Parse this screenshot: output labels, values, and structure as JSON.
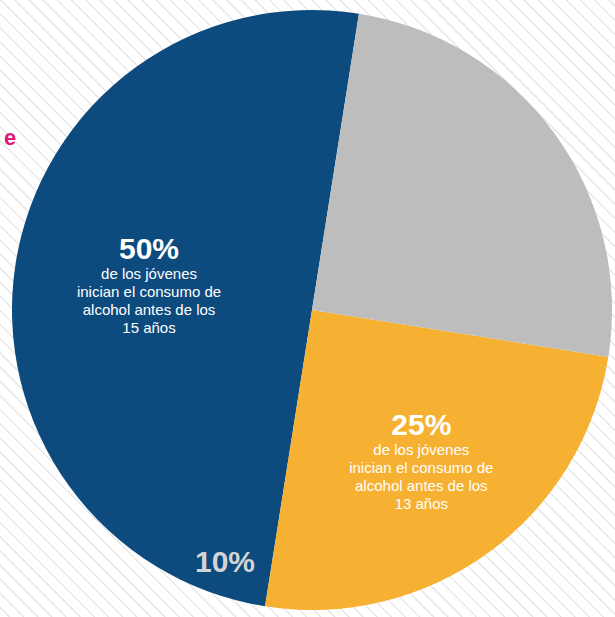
{
  "chart_data": {
    "type": "pie",
    "values": [
      50,
      25,
      25
    ],
    "value_labels": [
      "50%",
      "25%",
      null
    ],
    "labels": [
      "de los jóvenes inician el consumo de alcohol antes de los 15 años",
      "de los jóvenes inician el consumo de alcohol antes de los 13 años",
      null
    ],
    "colors": [
      "#0d4a7e",
      "#f6b132",
      "#bdbdbd"
    ],
    "data_labels": true,
    "annotations": [
      "10%",
      "e"
    ]
  }
}
